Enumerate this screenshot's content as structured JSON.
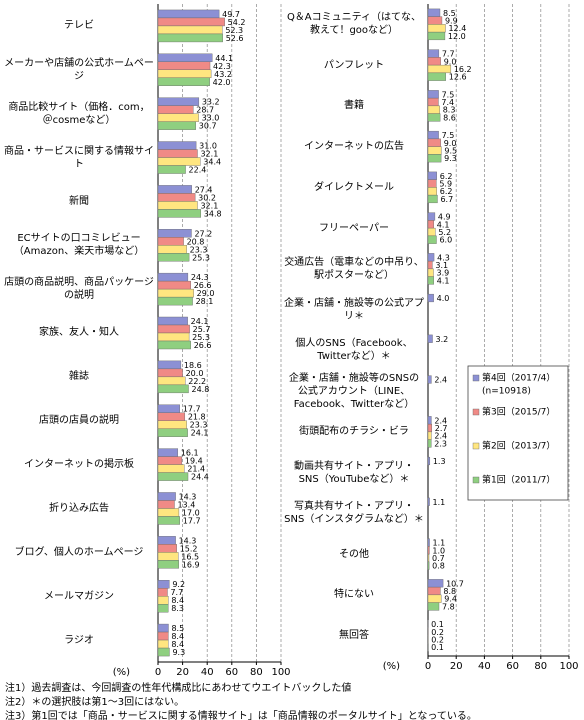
{
  "chart_data": [
    {
      "type": "bar",
      "orientation": "horizontal",
      "axis_label": "(%)",
      "categories": [
        "テレビ",
        "メーカーや店舗の公式ホームページ",
        "商品比較サイト（価格．com，＠cosmeなど）",
        "商品・サービスに関する情報サイト",
        "新聞",
        "ECサイトの口コミレビュー（Amazon、楽天市場など）",
        "店頭の商品説明、商品パッケージの説明",
        "家族、友人・知人",
        "雑誌",
        "店頭の店員の説明",
        "インターネットの掲示板",
        "折り込み広告",
        "ブログ、個人のホームページ",
        "メールマガジン",
        "ラジオ"
      ],
      "series": [
        {
          "color": "#8c90d4",
          "values": [
            49.7,
            44.1,
            33.2,
            31.0,
            27.4,
            27.2,
            24.3,
            24.1,
            18.6,
            17.7,
            16.1,
            14.3,
            14.3,
            9.2,
            8.5
          ],
          "value_labels": [
            "49.7",
            "44.1",
            "33.2",
            "31.0",
            "27.4",
            "27.2",
            "24.3",
            "24.1",
            "18.6",
            "17.7",
            "16.1",
            "14.3",
            "14.3",
            "9.2",
            "8.5"
          ]
        },
        {
          "color": "#f08a86",
          "values": [
            54.2,
            42.3,
            28.7,
            32.1,
            30.2,
            20.8,
            26.6,
            25.7,
            20.0,
            21.8,
            19.4,
            13.4,
            15.2,
            7.7,
            8.4
          ],
          "value_labels": [
            "54.2",
            "42.3",
            "28.7",
            "32.1",
            "30.2",
            "20.8",
            "26.6",
            "25.7",
            "20.0",
            "21.8",
            "19.4",
            "13.4",
            "15.2",
            "7.7",
            "8.4"
          ]
        },
        {
          "color": "#ffe680",
          "values": [
            52.3,
            43.2,
            33.0,
            34.4,
            32.1,
            23.3,
            29.0,
            25.3,
            22.2,
            23.3,
            21.4,
            17.0,
            16.5,
            8.4,
            8.4
          ],
          "value_labels": [
            "52.3",
            "43.2",
            "33.0",
            "34.4",
            "32.1",
            "23.3",
            "29.0",
            "25.3",
            "22.2",
            "23.3",
            "21.4",
            "17.0",
            "16.5",
            "8.4",
            "8.4"
          ]
        },
        {
          "color": "#8fcf80",
          "values": [
            52.6,
            42.0,
            30.7,
            22.4,
            34.8,
            25.3,
            28.1,
            26.6,
            24.8,
            24.1,
            24.4,
            17.7,
            16.9,
            8.3,
            9.3
          ],
          "value_labels": [
            "52.6",
            "42.0",
            "30.7",
            "22.4",
            "34.8",
            "25.3",
            "28.1",
            "26.6",
            "24.8",
            "24.1",
            "24.4",
            "17.7",
            "16.9",
            "8.3",
            "9.3"
          ]
        }
      ],
      "xlim": [
        0,
        100
      ],
      "xticks": [
        0,
        20,
        40,
        60,
        80,
        100
      ],
      "grid": true
    },
    {
      "type": "bar",
      "orientation": "horizontal",
      "axis_label": "(%)",
      "legend": "right",
      "legend_note": "(n=10918)",
      "categories": [
        "Q＆Aコミュニティ（はてな、教えて！gooなど）",
        "パンフレット",
        "書籍",
        "インターネットの広告",
        "ダイレクトメール",
        "フリーペーパー",
        "交通広告（電車などの中吊り、駅ポスターなど）",
        "企業・店舗・施設等の公式アプリ＊",
        "個人のSNS（Facebook、Twitterなど）＊",
        "企業・店舗・施設等のSNSの公式アカウント（LINE、Facebook、Twitterなど）",
        "街頭配布のチラシ・ビラ",
        "動画共有サイト・アプリ・SNS（YouTubeなど）＊",
        "写真共有サイト・アプリ・SNS（インスタグラムなど）＊",
        "その他",
        "特にない",
        "無回答"
      ],
      "series": [
        {
          "name": "第4回（2017/4）",
          "color": "#8c90d4",
          "values": [
            8.5,
            7.7,
            7.5,
            7.5,
            6.2,
            4.9,
            4.3,
            4.0,
            3.2,
            2.4,
            2.4,
            1.3,
            1.1,
            1.1,
            10.7,
            0.1
          ],
          "value_labels": [
            "8.5",
            "7.7",
            "7.5",
            "7.5",
            "6.2",
            "4.9",
            "4.3",
            "4.0",
            "3.2",
            "2.4",
            "2.4",
            "1.3",
            "1.1",
            "1.1",
            "10.7",
            "0.1"
          ]
        },
        {
          "name": "第3回（2015/7）",
          "color": "#f08a86",
          "values": [
            9.9,
            9.0,
            7.4,
            9.0,
            5.9,
            4.1,
            3.1,
            null,
            null,
            null,
            2.7,
            null,
            null,
            1.0,
            8.8,
            0.2
          ],
          "value_labels": [
            "9.9",
            "9.0",
            "7.4",
            "9.0",
            "5.9",
            "4.1",
            "3.1",
            null,
            null,
            null,
            "2.7",
            null,
            null,
            "1.0",
            "8.8",
            "0.2"
          ]
        },
        {
          "name": "第2回（2013/7）",
          "color": "#ffe680",
          "values": [
            12.4,
            16.2,
            8.3,
            9.5,
            6.2,
            5.2,
            3.9,
            null,
            null,
            null,
            2.4,
            null,
            null,
            0.7,
            9.4,
            0.2
          ],
          "value_labels": [
            "12.4",
            "16.2",
            "8.3",
            "9.5",
            "6.2",
            "5.2",
            "3.9",
            null,
            null,
            null,
            "2.4",
            null,
            null,
            "0.7",
            "9.4",
            "0.2"
          ]
        },
        {
          "name": "第1回（2011/7）",
          "color": "#8fcf80",
          "values": [
            12.0,
            12.6,
            8.6,
            9.3,
            6.7,
            6.0,
            4.1,
            null,
            null,
            null,
            2.3,
            null,
            null,
            0.8,
            7.8,
            0.1
          ],
          "value_labels": [
            "12.0",
            "12.6",
            "8.6",
            "9.3",
            "6.7",
            "6.0",
            "4.1",
            null,
            null,
            null,
            "2.3",
            null,
            null,
            "0.8",
            "7.8",
            "0.1"
          ]
        }
      ],
      "xlim": [
        0,
        100
      ],
      "xticks": [
        0,
        20,
        40,
        60,
        80,
        100
      ],
      "grid": true
    }
  ],
  "notes": [
    "注1）過去調査は、今回調査の性年代構成比にあわせてウエイトバックした値",
    "注2）＊の選択肢は第1～3回にはない。",
    "注3）第1回では「商品・サービスに関する情報サイト」は「商品情報のポータルサイト」となっている。"
  ]
}
